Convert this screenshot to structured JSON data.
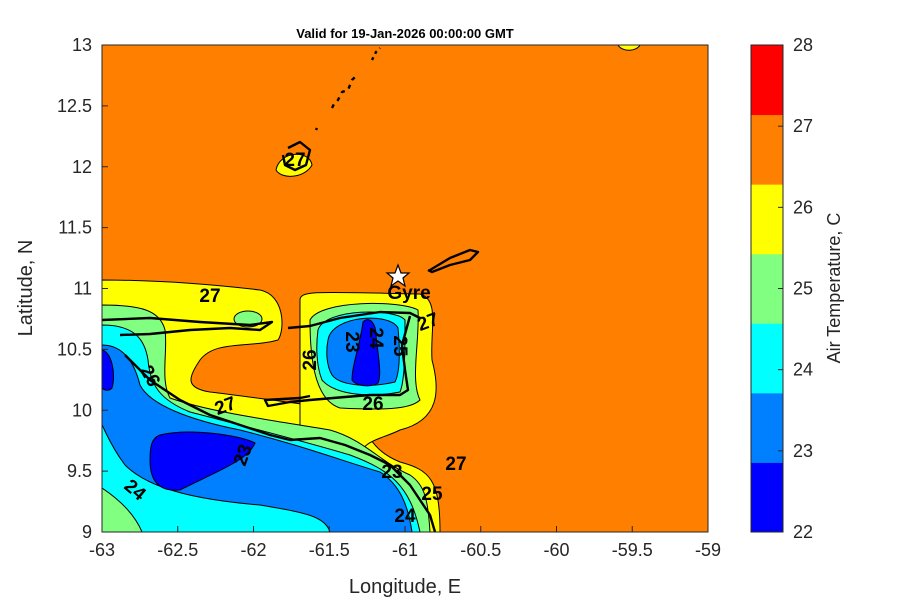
{
  "chart_data": {
    "type": "heatmap",
    "subtype": "filled-contour-map",
    "title": "Valid for 19-Jan-2026 00:00:00 GMT",
    "xlabel": "Longitude, E",
    "ylabel": "Latitude, N",
    "xlim": [
      -63,
      -59
    ],
    "ylim": [
      9,
      13
    ],
    "xticks": [
      "-63",
      "-62.5",
      "-62",
      "-61.5",
      "-61",
      "-60.5",
      "-60",
      "-59.5",
      "-59"
    ],
    "yticks": [
      "9",
      "9.5",
      "10",
      "10.5",
      "11",
      "11.5",
      "12",
      "12.5",
      "13"
    ],
    "colorbar": {
      "label": "Air Temperature, C",
      "range": [
        22,
        28
      ],
      "ticks": [
        "22",
        "23",
        "24",
        "25",
        "26",
        "27",
        "28"
      ],
      "colors": [
        "#0000ff",
        "#0080ff",
        "#00ffff",
        "#80ff80",
        "#ffff00",
        "#ff8000",
        "#ff0000"
      ]
    },
    "contour_labels": [
      "27",
      "27",
      "27",
      "26",
      "26",
      "23",
      "24",
      "27",
      "23",
      "24",
      "25",
      "23",
      "24",
      "25",
      "26",
      "27"
    ],
    "marker": {
      "name": "Gyre",
      "lon": -61.05,
      "lat": 11.1,
      "symbol": "star"
    }
  }
}
